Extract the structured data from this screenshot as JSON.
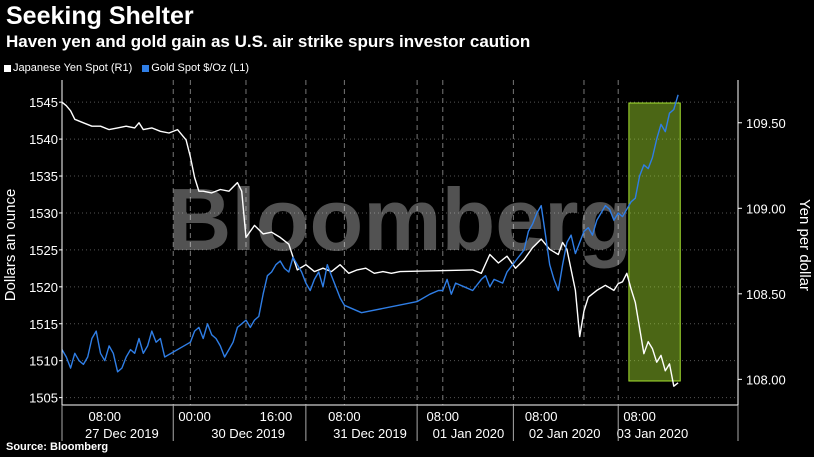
{
  "header": {
    "title": "Seeking Shelter",
    "subtitle": "Haven yen and gold gain as U.S. air strike spurs investor caution"
  },
  "source": "Source: Bloomberg",
  "watermark": "Bloomberg",
  "colors": {
    "background": "#000000",
    "yen_series": "#ffffff",
    "gold_series": "#2f7ee6",
    "highlight": "#a6e22e",
    "grid": "#555555"
  },
  "chart_data": {
    "type": "line",
    "title": "Seeking Shelter",
    "subtitle": "Haven yen and gold gain as U.S. air strike spurs investor caution",
    "ylabel_left": "Dollars an ounce",
    "ylabel_right": "Yen per dollar",
    "yleft_ticks": [
      "1545",
      "1540",
      "1535",
      "1530",
      "1525",
      "1520",
      "1515",
      "1510",
      "1505"
    ],
    "yright_ticks": [
      "109.50",
      "109.00",
      "108.50",
      "108.00"
    ],
    "ylim_left": [
      1504,
      1548
    ],
    "ylim_right": [
      107.85,
      109.75
    ],
    "x_time_labels": [
      "08:00",
      "00:00",
      "16:00",
      "08:00",
      "08:00",
      "08:00",
      "08:00"
    ],
    "x_date_labels": [
      "27 Dec 2019",
      "30 Dec 2019",
      "31 Dec 2019",
      "01 Jan 2020",
      "02 Jan 2020",
      "03 Jan 2020"
    ],
    "x_range_hours": [
      0,
      158
    ],
    "grid": true,
    "legend": "top-left",
    "highlight_region_hours": [
      132.5,
      144.5
    ],
    "series": [
      {
        "name": "Japanese Yen Spot  (R1)",
        "axis": "right",
        "points": [
          [
            0,
            109.62
          ],
          [
            1,
            109.6
          ],
          [
            2,
            109.57
          ],
          [
            3,
            109.52
          ],
          [
            5,
            109.5
          ],
          [
            7,
            109.48
          ],
          [
            9,
            109.48
          ],
          [
            11,
            109.46
          ],
          [
            13,
            109.47
          ],
          [
            15,
            109.48
          ],
          [
            17,
            109.47
          ],
          [
            18,
            109.5
          ],
          [
            19,
            109.46
          ],
          [
            21,
            109.47
          ],
          [
            23,
            109.45
          ],
          [
            25,
            109.44
          ],
          [
            27,
            109.46
          ],
          [
            29,
            109.4
          ],
          [
            30,
            109.3
          ],
          [
            31,
            109.18
          ],
          [
            32,
            109.1
          ],
          [
            33,
            109.1
          ],
          [
            35,
            109.09
          ],
          [
            37,
            109.11
          ],
          [
            39,
            109.1
          ],
          [
            41,
            109.15
          ],
          [
            42,
            109.1
          ],
          [
            43,
            108.83
          ],
          [
            45,
            108.9
          ],
          [
            47,
            108.85
          ],
          [
            49,
            108.86
          ],
          [
            51,
            108.83
          ],
          [
            53,
            108.79
          ],
          [
            55,
            108.64
          ],
          [
            57,
            108.67
          ],
          [
            59,
            108.63
          ],
          [
            61,
            108.65
          ],
          [
            63,
            108.63
          ],
          [
            65,
            108.67
          ],
          [
            67,
            108.62
          ],
          [
            69,
            108.64
          ],
          [
            71,
            108.65
          ],
          [
            73,
            108.62
          ],
          [
            75,
            108.63
          ],
          [
            77,
            108.62
          ],
          [
            79,
            108.63
          ],
          [
            96,
            108.64
          ],
          [
            98,
            108.62
          ],
          [
            100,
            108.73
          ],
          [
            102,
            108.68
          ],
          [
            104,
            108.72
          ],
          [
            106,
            108.65
          ],
          [
            108,
            108.7
          ],
          [
            110,
            108.77
          ],
          [
            112,
            108.82
          ],
          [
            114,
            108.76
          ],
          [
            116,
            108.73
          ],
          [
            117,
            108.8
          ],
          [
            118,
            108.76
          ],
          [
            120,
            108.52
          ],
          [
            121,
            108.25
          ],
          [
            122,
            108.4
          ],
          [
            123,
            108.48
          ],
          [
            125,
            108.52
          ],
          [
            127,
            108.55
          ],
          [
            129,
            108.52
          ],
          [
            130,
            108.56
          ],
          [
            131,
            108.57
          ],
          [
            132,
            108.62
          ],
          [
            133,
            108.53
          ],
          [
            134,
            108.45
          ],
          [
            135,
            108.3
          ],
          [
            136,
            108.15
          ],
          [
            137,
            108.22
          ],
          [
            138,
            108.18
          ],
          [
            139,
            108.1
          ],
          [
            140,
            108.14
          ],
          [
            141,
            108.05
          ],
          [
            142,
            108.09
          ],
          [
            143,
            107.96
          ],
          [
            144,
            107.98
          ]
        ]
      },
      {
        "name": "Gold Spot $/Oz  (L1)",
        "axis": "left",
        "points": [
          [
            0,
            1511.5
          ],
          [
            1,
            1510.5
          ],
          [
            2,
            1509
          ],
          [
            3,
            1511
          ],
          [
            4,
            1510
          ],
          [
            5,
            1509.5
          ],
          [
            6,
            1510.5
          ],
          [
            7,
            1513
          ],
          [
            8,
            1514
          ],
          [
            9,
            1511
          ],
          [
            10,
            1510
          ],
          [
            11,
            1512
          ],
          [
            12,
            1511
          ],
          [
            13,
            1508.5
          ],
          [
            14,
            1509
          ],
          [
            15,
            1510.5
          ],
          [
            16,
            1511.5
          ],
          [
            17,
            1511
          ],
          [
            18,
            1513
          ],
          [
            19,
            1511
          ],
          [
            20,
            1512
          ],
          [
            21,
            1514
          ],
          [
            22,
            1512.5
          ],
          [
            23,
            1513
          ],
          [
            24,
            1510.5
          ],
          [
            30,
            1512.5
          ],
          [
            31,
            1514
          ],
          [
            32,
            1514.5
          ],
          [
            33,
            1513
          ],
          [
            34,
            1515
          ],
          [
            35,
            1513.5
          ],
          [
            36,
            1513
          ],
          [
            37,
            1512
          ],
          [
            38,
            1510.5
          ],
          [
            39,
            1511.5
          ],
          [
            40,
            1512.5
          ],
          [
            41,
            1514.5
          ],
          [
            42,
            1515
          ],
          [
            43,
            1515.5
          ],
          [
            44,
            1514.5
          ],
          [
            45,
            1515.5
          ],
          [
            46,
            1516
          ],
          [
            47,
            1519
          ],
          [
            48,
            1521.5
          ],
          [
            49,
            1522
          ],
          [
            50,
            1523
          ],
          [
            51,
            1523.5
          ],
          [
            52,
            1522.5
          ],
          [
            53,
            1522
          ],
          [
            54,
            1524
          ],
          [
            55,
            1523
          ],
          [
            56,
            1522
          ],
          [
            57,
            1520.5
          ],
          [
            58,
            1519.5
          ],
          [
            59,
            1521
          ],
          [
            60,
            1522
          ],
          [
            61,
            1520
          ],
          [
            62,
            1523
          ],
          [
            63,
            1521.5
          ],
          [
            64,
            1520
          ],
          [
            65,
            1518.5
          ],
          [
            66,
            1517.5
          ],
          [
            70,
            1516.5
          ],
          [
            83,
            1518
          ],
          [
            86,
            1519
          ],
          [
            88,
            1519.5
          ],
          [
            89,
            1519.5
          ],
          [
            90,
            1521
          ],
          [
            91,
            1519
          ],
          [
            92,
            1520.5
          ],
          [
            94,
            1520
          ],
          [
            96,
            1519.5
          ],
          [
            98,
            1521
          ],
          [
            99,
            1521.5
          ],
          [
            100,
            1520
          ],
          [
            101,
            1521
          ],
          [
            103,
            1520.5
          ],
          [
            104,
            1522
          ],
          [
            106,
            1523.5
          ],
          [
            108,
            1525
          ],
          [
            109,
            1527.5
          ],
          [
            110,
            1528.5
          ],
          [
            111,
            1530
          ],
          [
            112,
            1531
          ],
          [
            113,
            1527
          ],
          [
            114,
            1523
          ],
          [
            115,
            1521
          ],
          [
            116,
            1519.5
          ],
          [
            117,
            1523
          ],
          [
            118,
            1526
          ],
          [
            119,
            1527
          ],
          [
            120,
            1524.5
          ],
          [
            121,
            1526
          ],
          [
            122,
            1527.5
          ],
          [
            123,
            1528
          ],
          [
            124,
            1527
          ],
          [
            125,
            1529
          ],
          [
            126,
            1530
          ],
          [
            127,
            1531
          ],
          [
            128,
            1530.5
          ],
          [
            129,
            1529
          ],
          [
            130,
            1530
          ],
          [
            131,
            1529.5
          ],
          [
            132,
            1530.5
          ],
          [
            133,
            1531.5
          ],
          [
            134,
            1532
          ],
          [
            135,
            1535
          ],
          [
            136,
            1536.5
          ],
          [
            137,
            1536
          ],
          [
            138,
            1537.5
          ],
          [
            139,
            1540
          ],
          [
            140,
            1542
          ],
          [
            141,
            1541
          ],
          [
            142,
            1543.5
          ],
          [
            143,
            1544
          ],
          [
            144,
            1546
          ]
        ]
      }
    ]
  }
}
